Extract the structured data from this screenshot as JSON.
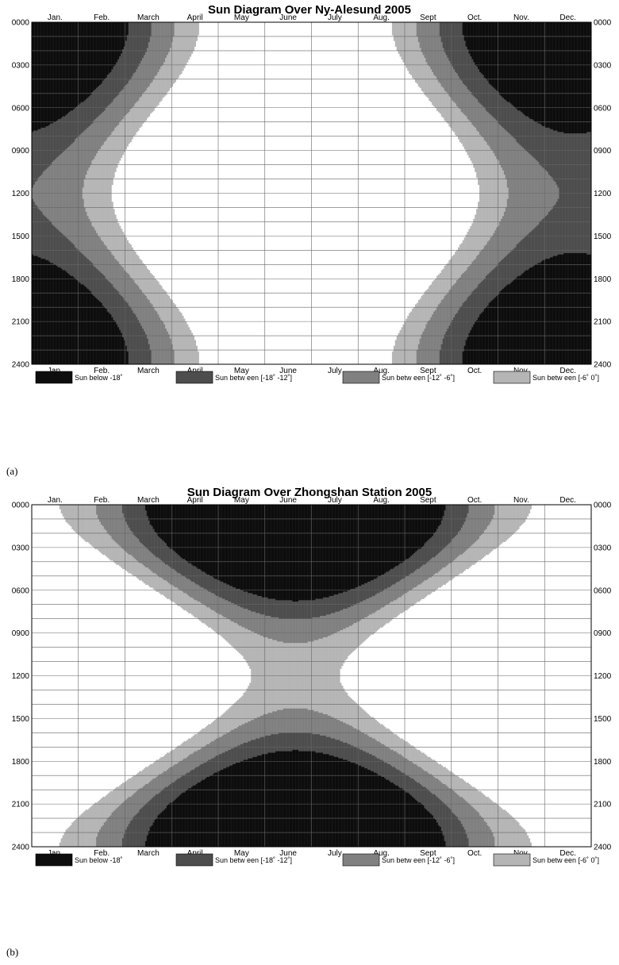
{
  "chart_data": [
    {
      "type": "heatmap",
      "panel_label": "(a)",
      "title": "Sun Diagram Over Ny-Alesund 2005",
      "x_ticks": [
        "Jan.",
        "Feb.",
        "March",
        "April",
        "May",
        "June",
        "July",
        "Aug.",
        "Sept",
        "Oct.",
        "Nov.",
        "Dec."
      ],
      "y_ticks": [
        "0000",
        "0300",
        "0600",
        "0900",
        "1200",
        "1500",
        "1800",
        "2100",
        "2400"
      ],
      "ylim": [
        0,
        2400
      ],
      "xlim": [
        1,
        365
      ],
      "grid": true,
      "hemisphere": "north",
      "classes": [
        {
          "label": "Sun below -18˚",
          "color": "#0d0d0d"
        },
        {
          "label": "Sun betw een [-18˚ -12˚]",
          "color": "#4d4d4d"
        },
        {
          "label": "Sun betw een [-12˚ -6˚]",
          "color": "#808080"
        },
        {
          "label": "Sun betw een [-6˚ 0˚]",
          "color": "#b5b5b5"
        }
      ],
      "sun_above_horizon_color": "#ffffff"
    },
    {
      "type": "heatmap",
      "panel_label": "(b)",
      "title": "Sun Diagram Over Zhongshan Station 2005",
      "x_ticks": [
        "Jan.",
        "Feb.",
        "March",
        "April",
        "May",
        "June",
        "July",
        "Aug.",
        "Sept",
        "Oct.",
        "Nov.",
        "Dec."
      ],
      "y_ticks": [
        "0000",
        "0300",
        "0600",
        "0900",
        "1200",
        "1500",
        "1800",
        "2100",
        "2400"
      ],
      "ylim": [
        0,
        2400
      ],
      "xlim": [
        1,
        365
      ],
      "grid": true,
      "hemisphere": "south",
      "classes": [
        {
          "label": "Sun below -18˚",
          "color": "#0d0d0d"
        },
        {
          "label": "Sun betw een [-18˚ -12˚]",
          "color": "#4d4d4d"
        },
        {
          "label": "Sun betw een [-12˚ -6˚]",
          "color": "#808080"
        },
        {
          "label": "Sun betw een [-6˚ 0˚]",
          "color": "#b5b5b5"
        }
      ],
      "sun_above_horizon_color": "#ffffff"
    }
  ]
}
